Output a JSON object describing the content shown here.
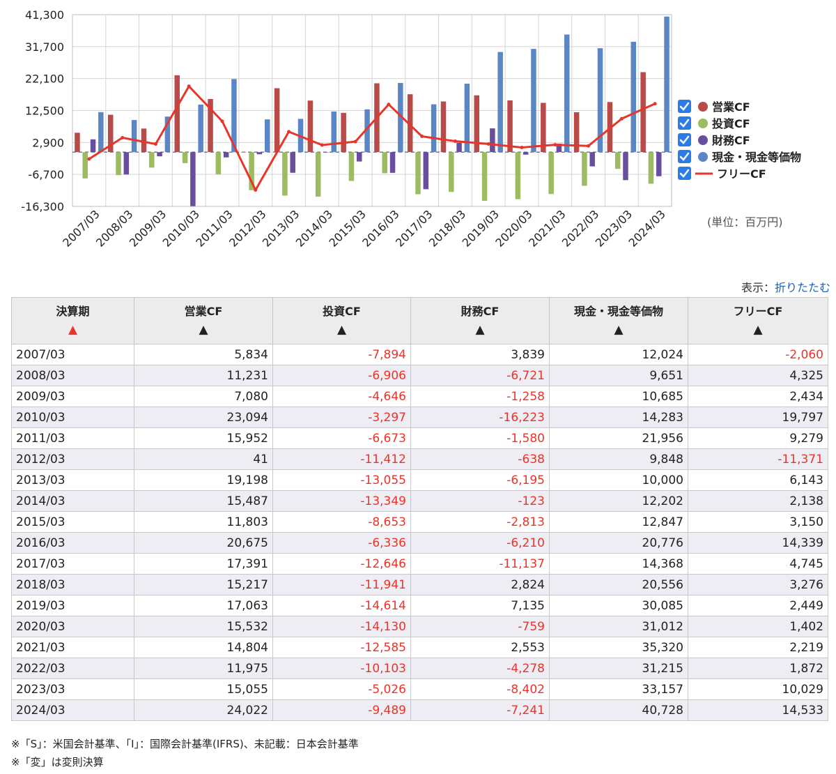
{
  "chart_data": {
    "type": "bar",
    "categories": [
      "2007/03",
      "2008/03",
      "2009/03",
      "2010/03",
      "2011/03",
      "2012/03",
      "2013/03",
      "2014/03",
      "2015/03",
      "2016/03",
      "2017/03",
      "2018/03",
      "2019/03",
      "2020/03",
      "2021/03",
      "2022/03",
      "2023/03",
      "2024/03"
    ],
    "series": [
      {
        "name": "営業CF",
        "type": "bar",
        "color": "#b84a48",
        "values": [
          5834,
          11231,
          7080,
          23094,
          15952,
          41,
          19198,
          15487,
          11803,
          20675,
          17391,
          15217,
          17063,
          15532,
          14804,
          11975,
          15055,
          24022
        ]
      },
      {
        "name": "投資CF",
        "type": "bar",
        "color": "#9dbb61",
        "values": [
          -7894,
          -6906,
          -4646,
          -3297,
          -6673,
          -11412,
          -13055,
          -13349,
          -8653,
          -6336,
          -12646,
          -11941,
          -14614,
          -14130,
          -12585,
          -10103,
          -5026,
          -9489
        ]
      },
      {
        "name": "財務CF",
        "type": "bar",
        "color": "#6a4e9e",
        "values": [
          3839,
          -6721,
          -1258,
          -16223,
          -1580,
          -638,
          -6195,
          -123,
          -2813,
          -6210,
          -11137,
          2824,
          7135,
          -759,
          2553,
          -4278,
          -8402,
          -7241
        ]
      },
      {
        "name": "現金・現金等価物",
        "type": "bar",
        "color": "#5a86c6",
        "values": [
          12024,
          9651,
          10685,
          14283,
          21956,
          9848,
          10000,
          12202,
          12847,
          20776,
          14368,
          20556,
          30085,
          31012,
          35320,
          31215,
          33157,
          40728
        ]
      },
      {
        "name": "フリーCF",
        "type": "line",
        "color": "#e8352b",
        "values": [
          -2060,
          4325,
          2434,
          19797,
          9279,
          -11371,
          6143,
          2138,
          3150,
          14339,
          4745,
          3276,
          2449,
          1402,
          2219,
          1872,
          10029,
          14533
        ]
      }
    ],
    "yticks": [
      41300,
      31700,
      22100,
      12500,
      2900,
      -6700,
      -16300
    ],
    "ytick_labels": [
      "41,300",
      "31,700",
      "22,100",
      "12,500",
      "2,900",
      "-6,700",
      "-16,300"
    ],
    "ylim": [
      -16300,
      41300
    ],
    "legend_position": "right",
    "unit_label": "(単位：百万円)"
  },
  "legend": {
    "items": [
      {
        "label": "営業CF",
        "checked": true
      },
      {
        "label": "投資CF",
        "checked": true
      },
      {
        "label": "財務CF",
        "checked": true
      },
      {
        "label": "現金・現金等価物",
        "checked": true
      },
      {
        "label": "フリーCF",
        "checked": true
      }
    ]
  },
  "display": {
    "label": "表示：",
    "toggle_link": "折りたたむ"
  },
  "table": {
    "headers": [
      "決算期",
      "営業CF",
      "投資CF",
      "財務CF",
      "現金・現金等価物",
      "フリーCF"
    ],
    "sort_active": "▲",
    "sort_inactive": "▲",
    "rows": [
      [
        "2007/03",
        "5,834",
        "-7,894",
        "3,839",
        "12,024",
        "-2,060"
      ],
      [
        "2008/03",
        "11,231",
        "-6,906",
        "-6,721",
        "9,651",
        "4,325"
      ],
      [
        "2009/03",
        "7,080",
        "-4,646",
        "-1,258",
        "10,685",
        "2,434"
      ],
      [
        "2010/03",
        "23,094",
        "-3,297",
        "-16,223",
        "14,283",
        "19,797"
      ],
      [
        "2011/03",
        "15,952",
        "-6,673",
        "-1,580",
        "21,956",
        "9,279"
      ],
      [
        "2012/03",
        "41",
        "-11,412",
        "-638",
        "9,848",
        "-11,371"
      ],
      [
        "2013/03",
        "19,198",
        "-13,055",
        "-6,195",
        "10,000",
        "6,143"
      ],
      [
        "2014/03",
        "15,487",
        "-13,349",
        "-123",
        "12,202",
        "2,138"
      ],
      [
        "2015/03",
        "11,803",
        "-8,653",
        "-2,813",
        "12,847",
        "3,150"
      ],
      [
        "2016/03",
        "20,675",
        "-6,336",
        "-6,210",
        "20,776",
        "14,339"
      ],
      [
        "2017/03",
        "17,391",
        "-12,646",
        "-11,137",
        "14,368",
        "4,745"
      ],
      [
        "2018/03",
        "15,217",
        "-11,941",
        "2,824",
        "20,556",
        "3,276"
      ],
      [
        "2019/03",
        "17,063",
        "-14,614",
        "7,135",
        "30,085",
        "2,449"
      ],
      [
        "2020/03",
        "15,532",
        "-14,130",
        "-759",
        "31,012",
        "1,402"
      ],
      [
        "2021/03",
        "14,804",
        "-12,585",
        "2,553",
        "35,320",
        "2,219"
      ],
      [
        "2022/03",
        "11,975",
        "-10,103",
        "-4,278",
        "31,215",
        "1,872"
      ],
      [
        "2023/03",
        "15,055",
        "-5,026",
        "-8,402",
        "33,157",
        "10,029"
      ],
      [
        "2024/03",
        "24,022",
        "-9,489",
        "-7,241",
        "40,728",
        "14,533"
      ]
    ]
  },
  "notes": [
    "※「S」：米国会計基準、「I」：国際会計基準(IFRS)、未記載：日本会計基準",
    "※「変」は変則決算"
  ],
  "colors": {
    "negative": "#e8352b",
    "link": "#1a5fbf",
    "checkbox": "#2d7be5"
  }
}
